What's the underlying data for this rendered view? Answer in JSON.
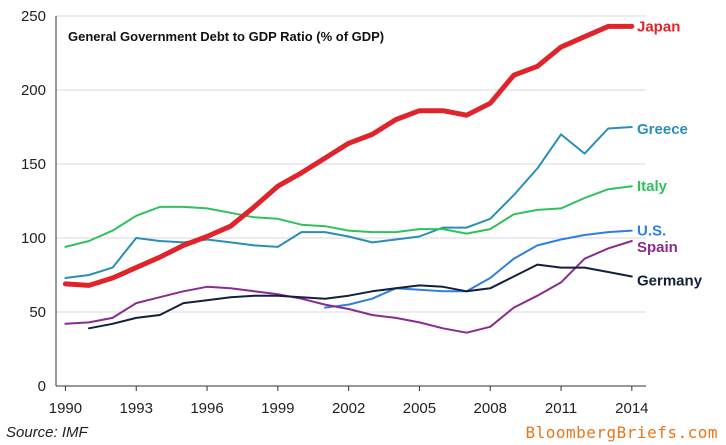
{
  "chart_data": {
    "type": "line",
    "title": "General Government Debt to GDP Ratio (% of GDP)",
    "xlabel": "",
    "ylabel": "",
    "xlim": [
      1989.6,
      2014.6
    ],
    "ylim": [
      0,
      250
    ],
    "x_ticks": [
      "1990",
      "1993",
      "1996",
      "1999",
      "2002",
      "2005",
      "2008",
      "2011",
      "2014"
    ],
    "y_ticks": [
      "0",
      "50",
      "100",
      "150",
      "200",
      "250"
    ],
    "grid": true,
    "series": [
      {
        "name": "Japan",
        "color": "#e0242b",
        "emphasis": true,
        "points": [
          [
            1990,
            69
          ],
          [
            1991,
            68
          ],
          [
            1992,
            73
          ],
          [
            1993,
            80
          ],
          [
            1994,
            87
          ],
          [
            1995,
            95
          ],
          [
            1996,
            101
          ],
          [
            1997,
            108
          ],
          [
            1998,
            121
          ],
          [
            1999,
            135
          ],
          [
            2000,
            144
          ],
          [
            2001,
            154
          ],
          [
            2002,
            164
          ],
          [
            2003,
            170
          ],
          [
            2004,
            180
          ],
          [
            2005,
            186
          ],
          [
            2006,
            186
          ],
          [
            2007,
            183
          ],
          [
            2008,
            191
          ],
          [
            2009,
            210
          ],
          [
            2010,
            216
          ],
          [
            2011,
            229
          ],
          [
            2012,
            236
          ],
          [
            2013,
            243
          ],
          [
            2014,
            243
          ]
        ]
      },
      {
        "name": "Greece",
        "color": "#2a8fb8",
        "points": [
          [
            1990,
            73
          ],
          [
            1991,
            75
          ],
          [
            1992,
            80
          ],
          [
            1993,
            100
          ],
          [
            1994,
            98
          ],
          [
            1995,
            97
          ],
          [
            1996,
            99
          ],
          [
            1997,
            97
          ],
          [
            1998,
            95
          ],
          [
            1999,
            94
          ],
          [
            2000,
            104
          ],
          [
            2001,
            104
          ],
          [
            2002,
            101
          ],
          [
            2003,
            97
          ],
          [
            2004,
            99
          ],
          [
            2005,
            101
          ],
          [
            2006,
            107
          ],
          [
            2007,
            107
          ],
          [
            2008,
            113
          ],
          [
            2009,
            129
          ],
          [
            2010,
            147
          ],
          [
            2011,
            170
          ],
          [
            2012,
            157
          ],
          [
            2013,
            174
          ],
          [
            2014,
            175
          ]
        ]
      },
      {
        "name": "Italy",
        "color": "#2fc25b",
        "points": [
          [
            1990,
            94
          ],
          [
            1991,
            98
          ],
          [
            1992,
            105
          ],
          [
            1993,
            115
          ],
          [
            1994,
            121
          ],
          [
            1995,
            121
          ],
          [
            1996,
            120
          ],
          [
            1997,
            117
          ],
          [
            1998,
            114
          ],
          [
            1999,
            113
          ],
          [
            2000,
            109
          ],
          [
            2001,
            108
          ],
          [
            2002,
            105
          ],
          [
            2003,
            104
          ],
          [
            2004,
            104
          ],
          [
            2005,
            106
          ],
          [
            2006,
            106
          ],
          [
            2007,
            103
          ],
          [
            2008,
            106
          ],
          [
            2009,
            116
          ],
          [
            2010,
            119
          ],
          [
            2011,
            120
          ],
          [
            2012,
            127
          ],
          [
            2013,
            133
          ],
          [
            2014,
            135
          ]
        ]
      },
      {
        "name": "U.S.",
        "color": "#2f7fe0",
        "points": [
          [
            2001,
            53
          ],
          [
            2002,
            55
          ],
          [
            2003,
            59
          ],
          [
            2004,
            66
          ],
          [
            2005,
            65
          ],
          [
            2006,
            64
          ],
          [
            2007,
            64
          ],
          [
            2008,
            73
          ],
          [
            2009,
            86
          ],
          [
            2010,
            95
          ],
          [
            2011,
            99
          ],
          [
            2012,
            102
          ],
          [
            2013,
            104
          ],
          [
            2014,
            105
          ]
        ]
      },
      {
        "name": "Spain",
        "color": "#8a2b8f",
        "points": [
          [
            1990,
            42
          ],
          [
            1991,
            43
          ],
          [
            1992,
            46
          ],
          [
            1993,
            56
          ],
          [
            1994,
            60
          ],
          [
            1995,
            64
          ],
          [
            1996,
            67
          ],
          [
            1997,
            66
          ],
          [
            1998,
            64
          ],
          [
            1999,
            62
          ],
          [
            2000,
            59
          ],
          [
            2001,
            55
          ],
          [
            2002,
            52
          ],
          [
            2003,
            48
          ],
          [
            2004,
            46
          ],
          [
            2005,
            43
          ],
          [
            2006,
            39
          ],
          [
            2007,
            36
          ],
          [
            2008,
            40
          ],
          [
            2009,
            53
          ],
          [
            2010,
            61
          ],
          [
            2011,
            70
          ],
          [
            2012,
            86
          ],
          [
            2013,
            93
          ],
          [
            2014,
            98
          ]
        ]
      },
      {
        "name": "Germany",
        "color": "#13203a",
        "points": [
          [
            1991,
            39
          ],
          [
            1992,
            42
          ],
          [
            1993,
            46
          ],
          [
            1994,
            48
          ],
          [
            1995,
            56
          ],
          [
            1996,
            58
          ],
          [
            1997,
            60
          ],
          [
            1998,
            61
          ],
          [
            1999,
            61
          ],
          [
            2000,
            60
          ],
          [
            2001,
            59
          ],
          [
            2002,
            61
          ],
          [
            2003,
            64
          ],
          [
            2004,
            66
          ],
          [
            2005,
            68
          ],
          [
            2006,
            67
          ],
          [
            2007,
            64
          ],
          [
            2008,
            66
          ],
          [
            2009,
            74
          ],
          [
            2010,
            82
          ],
          [
            2011,
            80
          ],
          [
            2012,
            80
          ],
          [
            2013,
            77
          ],
          [
            2014,
            74
          ]
        ]
      }
    ]
  },
  "footer": {
    "source": "Source: IMF",
    "brand": "BloombergBriefs.com"
  }
}
